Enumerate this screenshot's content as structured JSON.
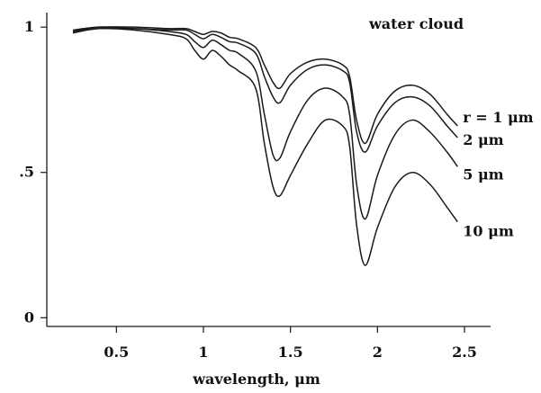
{
  "chart_data": {
    "type": "line",
    "title": "water cloud",
    "xlabel": "wavelength, μm",
    "ylabel": "",
    "xlim": [
      0.1,
      2.65
    ],
    "ylim": [
      -0.03,
      1.05
    ],
    "xticks": [
      0.5,
      1,
      1.5,
      2,
      2.5
    ],
    "xtick_labels": [
      "0.5",
      "1",
      "1.5",
      "2",
      "2.5"
    ],
    "yticks": [
      0,
      0.5,
      1
    ],
    "ytick_labels": [
      "0",
      ".5",
      "1"
    ],
    "grid": false,
    "legend": "none",
    "series": [
      {
        "name": "r = 1 μm",
        "x": [
          0.25,
          0.4,
          0.6,
          0.8,
          0.9,
          0.95,
          1.0,
          1.05,
          1.1,
          1.15,
          1.2,
          1.3,
          1.35,
          1.4,
          1.44,
          1.5,
          1.6,
          1.7,
          1.8,
          1.84,
          1.88,
          1.93,
          2.0,
          2.1,
          2.2,
          2.3,
          2.4,
          2.46
        ],
        "y": [
          0.99,
          1.0,
          1.0,
          0.995,
          0.995,
          0.985,
          0.975,
          0.985,
          0.98,
          0.965,
          0.96,
          0.93,
          0.87,
          0.81,
          0.79,
          0.84,
          0.88,
          0.89,
          0.87,
          0.83,
          0.68,
          0.6,
          0.7,
          0.78,
          0.8,
          0.77,
          0.7,
          0.66
        ]
      },
      {
        "name": "2 μm",
        "x": [
          0.25,
          0.4,
          0.6,
          0.8,
          0.9,
          0.95,
          1.0,
          1.05,
          1.1,
          1.15,
          1.2,
          1.3,
          1.35,
          1.4,
          1.44,
          1.5,
          1.6,
          1.7,
          1.8,
          1.84,
          1.88,
          1.93,
          2.0,
          2.1,
          2.2,
          2.3,
          2.4,
          2.46
        ],
        "y": [
          0.985,
          1.0,
          0.995,
          0.99,
          0.99,
          0.975,
          0.96,
          0.975,
          0.965,
          0.95,
          0.945,
          0.91,
          0.83,
          0.76,
          0.74,
          0.8,
          0.855,
          0.87,
          0.85,
          0.81,
          0.64,
          0.57,
          0.66,
          0.74,
          0.76,
          0.73,
          0.66,
          0.62
        ]
      },
      {
        "name": "5 μm",
        "x": [
          0.25,
          0.4,
          0.6,
          0.8,
          0.9,
          0.95,
          1.0,
          1.05,
          1.1,
          1.15,
          1.2,
          1.3,
          1.35,
          1.4,
          1.44,
          1.5,
          1.6,
          1.7,
          1.8,
          1.84,
          1.88,
          1.93,
          2.0,
          2.1,
          2.2,
          2.3,
          2.4,
          2.46
        ],
        "y": [
          0.985,
          0.995,
          0.995,
          0.985,
          0.975,
          0.95,
          0.93,
          0.955,
          0.94,
          0.92,
          0.91,
          0.85,
          0.7,
          0.56,
          0.55,
          0.64,
          0.75,
          0.79,
          0.76,
          0.7,
          0.46,
          0.34,
          0.49,
          0.63,
          0.68,
          0.64,
          0.57,
          0.52
        ]
      },
      {
        "name": "10 μm",
        "x": [
          0.25,
          0.4,
          0.6,
          0.8,
          0.9,
          0.95,
          1.0,
          1.05,
          1.1,
          1.15,
          1.2,
          1.3,
          1.35,
          1.4,
          1.44,
          1.5,
          1.6,
          1.7,
          1.8,
          1.84,
          1.88,
          1.93,
          2.0,
          2.1,
          2.2,
          2.3,
          2.4,
          2.46
        ],
        "y": [
          0.98,
          0.995,
          0.99,
          0.975,
          0.96,
          0.92,
          0.89,
          0.92,
          0.9,
          0.87,
          0.85,
          0.79,
          0.6,
          0.45,
          0.42,
          0.49,
          0.6,
          0.68,
          0.66,
          0.59,
          0.32,
          0.18,
          0.31,
          0.45,
          0.5,
          0.46,
          0.38,
          0.33
        ]
      }
    ],
    "series_labels": [
      "r = 1 μm",
      "2 μm",
      "5 μm",
      "10 μm"
    ]
  }
}
